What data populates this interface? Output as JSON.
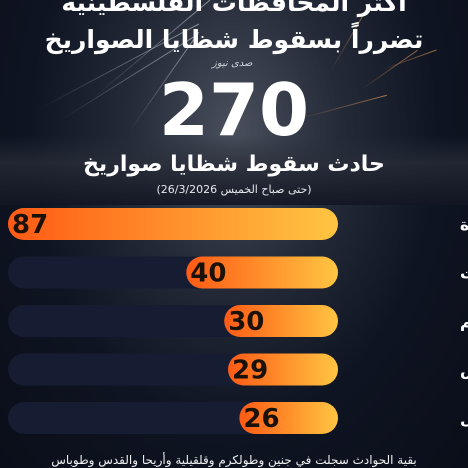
{
  "header": {
    "title_line1": "أكثر المحافظات الفلسطينية",
    "title_line2": "تضرراً بسقوط شظايا الصواريخ",
    "logo_text": "صدى نيوز"
  },
  "total": {
    "value": "270",
    "label": "حادث سقوط شظايا صواريخ",
    "note": "(حتى صباح الخميس 26/3/2026)"
  },
  "footer": {
    "text": "بقية الحوادث سجلت في جنين وطولكرم وقلقيلية وأريحا والقدس وطوباس"
  },
  "colors": {
    "bar_start": "#ff5a14",
    "bar_end": "#ffc542",
    "bar_track": "#161d33",
    "label": "#ffffff"
  },
  "chart_data": {
    "type": "bar",
    "orientation": "horizontal",
    "categories": [
      "رام الله والبيرة",
      "سلفيت",
      "بيت لحم",
      "نابلس",
      "الخليل"
    ],
    "values": [
      87,
      40,
      30,
      29,
      26
    ],
    "data_labels": [
      "87",
      "40",
      "30",
      "29",
      "26"
    ],
    "xlim": [
      0,
      87
    ],
    "grid": false,
    "legend": "none"
  }
}
